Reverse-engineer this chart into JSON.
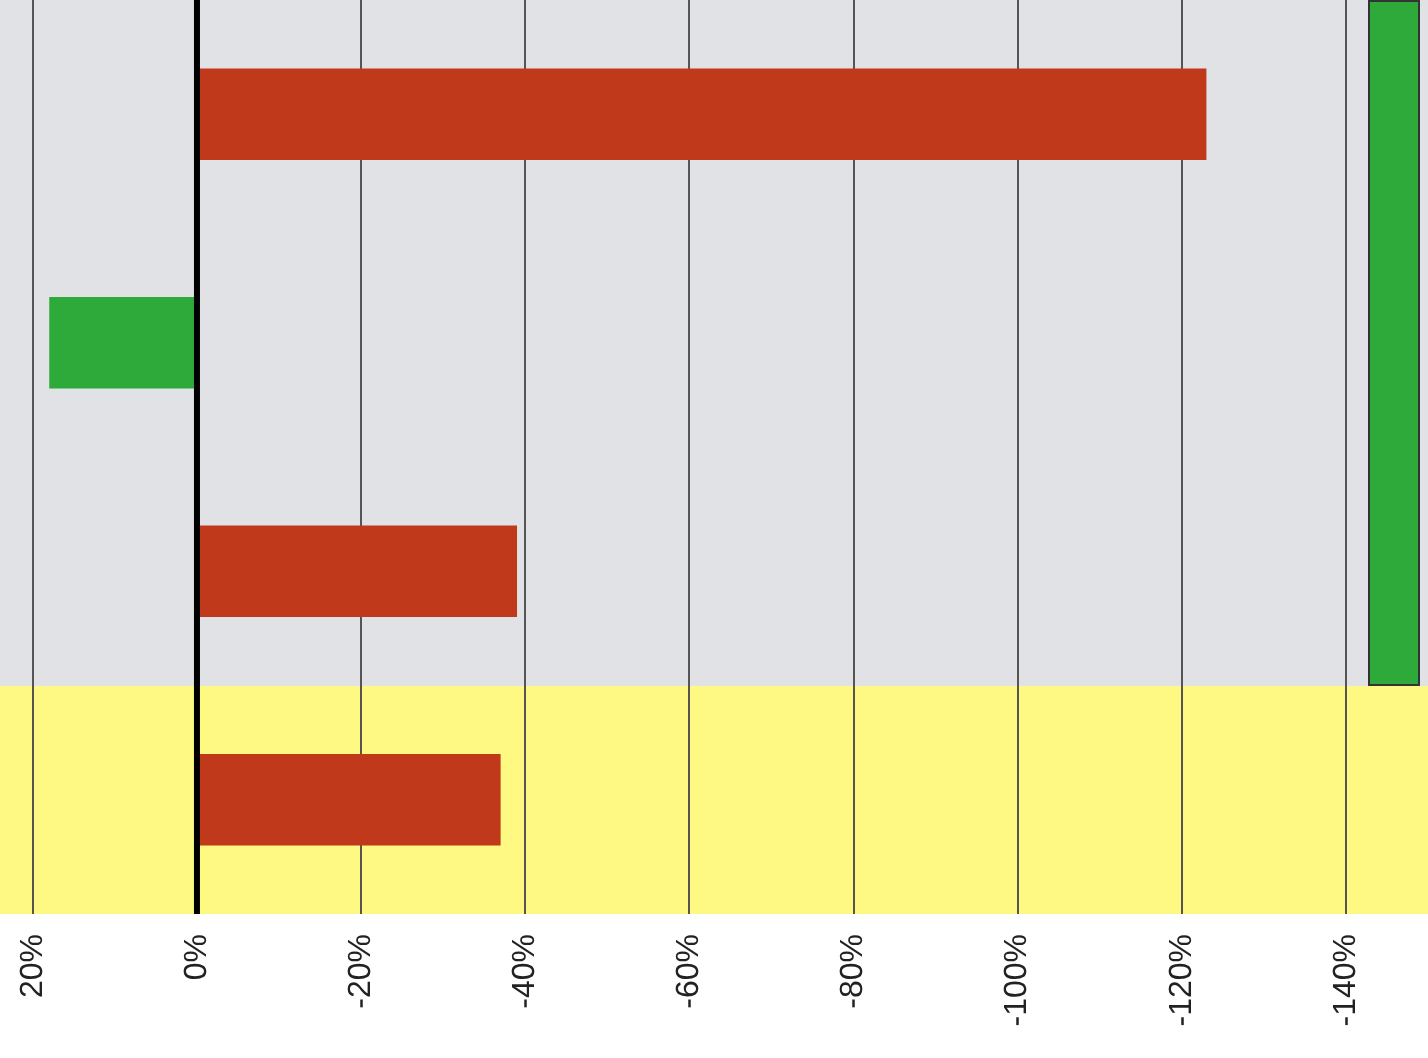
{
  "chart_data": {
    "type": "bar",
    "orientation": "horizontal",
    "categories": [
      null,
      null,
      null,
      null
    ],
    "values": [
      -123,
      18,
      -39,
      -37
    ],
    "colors": [
      "#c0391b",
      "#2eaa3a",
      "#c0391b",
      "#c0391b"
    ],
    "xlim": [
      24,
      -150
    ],
    "xticks": [
      {
        "value": 20,
        "label": "20%"
      },
      {
        "value": 0,
        "label": "0%"
      },
      {
        "value": -20,
        "label": "-20%"
      },
      {
        "value": -40,
        "label": "-40%"
      },
      {
        "value": -60,
        "label": "-60%"
      },
      {
        "value": -80,
        "label": "-80%"
      },
      {
        "value": -100,
        "label": "-100%"
      },
      {
        "value": -120,
        "label": "-120%"
      },
      {
        "value": -140,
        "label": "-140%"
      }
    ],
    "grid": "x",
    "ref_lines": [
      {
        "axis": "x",
        "value": 0,
        "color": "#000000"
      }
    ]
  }
}
